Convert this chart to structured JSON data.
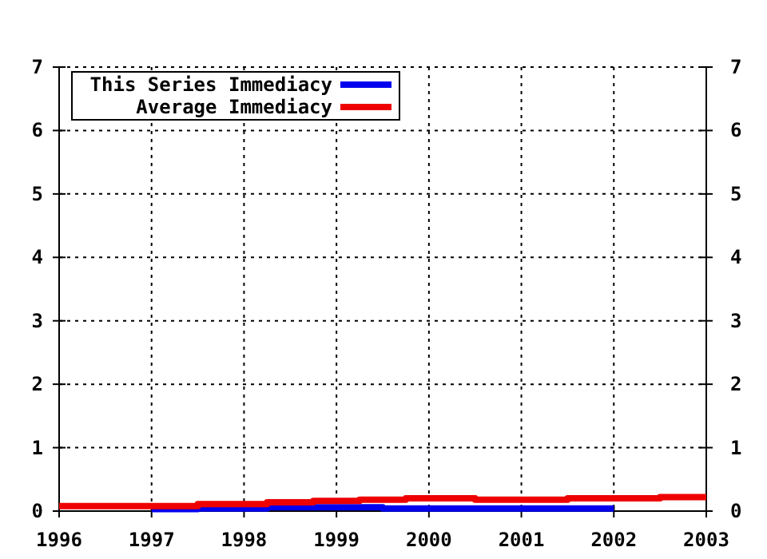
{
  "chart_data": {
    "type": "step",
    "xlim": [
      1996,
      2003
    ],
    "xticks": [
      1996,
      1997,
      1998,
      1999,
      2000,
      2001,
      2002,
      2003
    ],
    "ylim": [
      0,
      7
    ],
    "yticks": [
      0,
      1,
      2,
      3,
      4,
      5,
      6,
      7
    ],
    "y2lim": [
      0,
      7
    ],
    "y2ticks": [
      0,
      1,
      2,
      3,
      4,
      5,
      6,
      7
    ],
    "grid": true,
    "legend": "top left",
    "line_style": "solid",
    "series": [
      {
        "name": "This Series Immediacy",
        "color": "#0000ee",
        "x": [
          1997,
          1997.5,
          1998.25,
          1999.5,
          2002
        ],
        "values": [
          0.03,
          0.04,
          0.06,
          0.04,
          0.04
        ]
      },
      {
        "name": "Average Immediacy",
        "color": "#ee0000",
        "x": [
          1996,
          1997.5,
          1998.25,
          1998.75,
          1999.25,
          1999.75,
          2000.5,
          2001.5,
          2002.5,
          2003
        ],
        "values": [
          0.08,
          0.11,
          0.14,
          0.16,
          0.18,
          0.2,
          0.18,
          0.2,
          0.22,
          0.22
        ]
      }
    ]
  }
}
